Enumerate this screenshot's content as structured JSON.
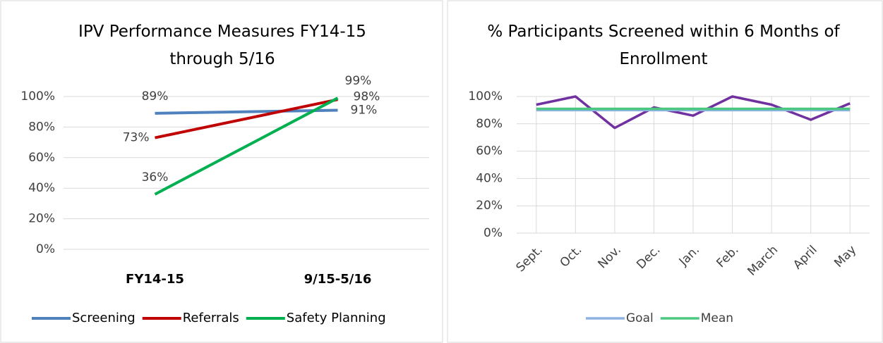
{
  "chart_data": [
    {
      "type": "line",
      "title": "IPV Performance Measures FY14-15 through 5/16",
      "categories": [
        "FY14-15",
        "9/15-5/16"
      ],
      "series": [
        {
          "name": "Screening",
          "color": "#4f81bd",
          "values": [
            89,
            91
          ],
          "value_labels": [
            "89%",
            "91%"
          ]
        },
        {
          "name": "Referrals",
          "color": "#c00000",
          "values": [
            73,
            98
          ],
          "value_labels": [
            "73%",
            "98%"
          ]
        },
        {
          "name": "Safety Planning",
          "color": "#00b050",
          "values": [
            36,
            99
          ],
          "value_labels": [
            "36%",
            "99%"
          ]
        }
      ],
      "ylim": [
        0,
        100
      ],
      "yticks": [
        {
          "value": 0,
          "label": "0%"
        },
        {
          "value": 20,
          "label": "20%"
        },
        {
          "value": 40,
          "label": "40%"
        },
        {
          "value": 60,
          "label": "60%"
        },
        {
          "value": 80,
          "label": "80%"
        },
        {
          "value": 100,
          "label": "100%"
        }
      ],
      "grid": true,
      "legend": "bottom"
    },
    {
      "type": "line",
      "title": "% Participants Screened within 6 Months of Enrollment",
      "categories": [
        "Sept.",
        "Oct.",
        "Nov.",
        "Dec.",
        "Jan.",
        "Feb.",
        "March",
        "April",
        "May"
      ],
      "series": [
        {
          "color": "#7030a0",
          "values": [
            94,
            100,
            77,
            92,
            86,
            100,
            94,
            83,
            95
          ]
        },
        {
          "name": "Goal",
          "color": "#8db3e2",
          "values": [
            90,
            90,
            90,
            90,
            90,
            90,
            90,
            90,
            90
          ]
        },
        {
          "name": "Mean",
          "color": "#4cc77f",
          "values": [
            91,
            91,
            91,
            91,
            91,
            91,
            91,
            91,
            91
          ]
        }
      ],
      "ylim": [
        0,
        100
      ],
      "yticks": [
        {
          "value": 0,
          "label": "0%"
        },
        {
          "value": 20,
          "label": "20%"
        },
        {
          "value": 40,
          "label": "40%"
        },
        {
          "value": 60,
          "label": "60%"
        },
        {
          "value": 80,
          "label": "80%"
        },
        {
          "value": 100,
          "label": "100%"
        }
      ],
      "grid": true,
      "legend": "bottom"
    }
  ]
}
